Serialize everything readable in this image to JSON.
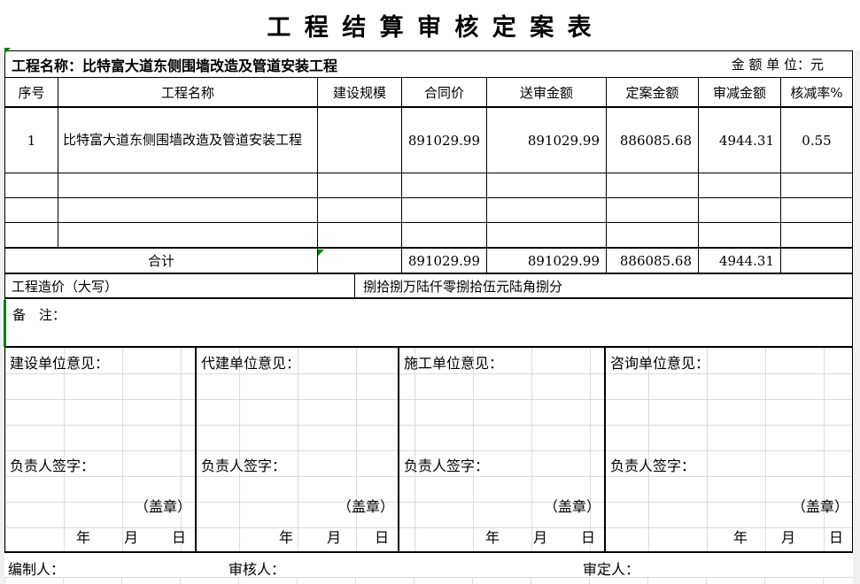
{
  "title": "工 程 结 算 审 核 定 案 表",
  "info_row": {
    "project_label": "工程名称：比特富大道东侧围墙改造及管道安装工程",
    "unit_label": "金 额 单 位：元"
  },
  "table": {
    "headers": [
      "序号",
      "工程名称",
      "建设规模",
      "合同价",
      "送审金额",
      "定案金额",
      "审减金额",
      "核减率%"
    ],
    "rows": [
      {
        "seq": "1",
        "name": "比特富大道东侧围墙改造及管道安装工程",
        "scale": "",
        "contract": "891029.99",
        "submitted": "891029.99",
        "finalized": "886085.68",
        "reduced": "4944.31",
        "rate": "0.55"
      },
      {
        "seq": "",
        "name": "",
        "scale": "",
        "contract": "",
        "submitted": "",
        "finalized": "",
        "reduced": "",
        "rate": ""
      },
      {
        "seq": "",
        "name": "",
        "scale": "",
        "contract": "",
        "submitted": "",
        "finalized": "",
        "reduced": "",
        "rate": ""
      },
      {
        "seq": "",
        "name": "",
        "scale": "",
        "contract": "",
        "submitted": "",
        "finalized": "",
        "reduced": "",
        "rate": ""
      }
    ],
    "total_row": {
      "label": "合计",
      "scale": "",
      "contract": "891029.99",
      "submitted": "891029.99",
      "finalized": "886085.68",
      "reduced": "4944.31",
      "rate": ""
    },
    "amount_words": {
      "label": "工程造价（大写）",
      "value": "捌拾捌万陆仟零捌拾伍元陆角捌分"
    },
    "remarks_label": "备　注："
  },
  "opinions": [
    {
      "title": "建设单位意见：",
      "sign": "负责人签字：",
      "seal": "（盖章）",
      "date": "年　　月　　日"
    },
    {
      "title": "代建单位意见：",
      "sign": "负责人签字：",
      "seal": "（盖章）",
      "date": "年　　月　　日"
    },
    {
      "title": "施工单位意见：",
      "sign": "负责人签字：",
      "seal": "（盖章）",
      "date": "年　　月　　日"
    },
    {
      "title": "咨询单位意见：",
      "sign": "负责人签字：",
      "seal": "（盖章）",
      "date": "年　　月　　日"
    }
  ],
  "footer": {
    "preparer": "编制人：",
    "reviewer": "审核人：",
    "approver": "审定人："
  },
  "colors": {
    "border": "#000000",
    "indicator_green": "#008000",
    "grid_gray": "#dcdcdc",
    "page_margin": "#f0f0f0"
  }
}
